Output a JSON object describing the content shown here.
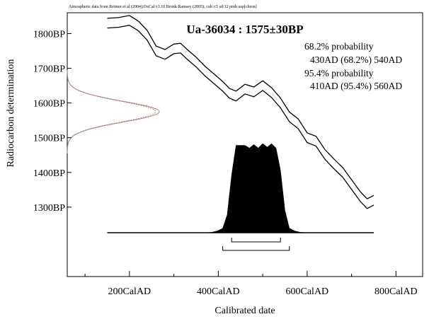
{
  "chart_data": {
    "type": "area",
    "header_note": "Atmospheric data from Reimer et al (2004);OxCal v3.10 Bronk Ramsey (2005); cub r:5 sd:12 prob usp[chron]",
    "title": "Ua-36034 : 1575±30BP",
    "xlabel": "Calibrated date",
    "ylabel": "Radiocarbon determination",
    "x_axis_unit": "CalAD",
    "y_axis_unit": "BP",
    "xlim": [
      60,
      860
    ],
    "ylim": [
      1100,
      1860
    ],
    "x_ticks": [
      {
        "value": 200,
        "label": "200CalAD"
      },
      {
        "value": 400,
        "label": "400CalAD"
      },
      {
        "value": 600,
        "label": "600CalAD"
      },
      {
        "value": 800,
        "label": "800CalAD"
      }
    ],
    "x_minor_ticks": [
      100,
      300,
      500,
      700
    ],
    "y_ticks": [
      {
        "value": 1800,
        "label": "1800BP"
      },
      {
        "value": 1700,
        "label": "1700BP"
      },
      {
        "value": 1600,
        "label": "1600BP"
      },
      {
        "value": 1500,
        "label": "1500BP"
      },
      {
        "value": 1400,
        "label": "1400BP"
      },
      {
        "value": 1300,
        "label": "1300BP"
      }
    ],
    "legend_lines": [
      "68.2% probability",
      "430AD (68.2%) 540AD",
      "95.4% probability",
      "410AD (95.4%) 560AD"
    ],
    "measurement": {
      "mean_bp": 1575,
      "sigma": 30
    },
    "calibration_curve": {
      "x": [
        150,
        175,
        200,
        220,
        240,
        260,
        280,
        300,
        315,
        330,
        350,
        370,
        390,
        410,
        425,
        440,
        460,
        480,
        500,
        520,
        540,
        560,
        580,
        600,
        620,
        640,
        660,
        680,
        700,
        720,
        735,
        750
      ],
      "y": [
        1830,
        1832,
        1838,
        1822,
        1795,
        1750,
        1740,
        1756,
        1758,
        1740,
        1718,
        1692,
        1670,
        1648,
        1628,
        1620,
        1640,
        1632,
        1650,
        1630,
        1600,
        1560,
        1540,
        1500,
        1490,
        1452,
        1425,
        1400,
        1365,
        1330,
        1310,
        1320
      ],
      "band_half_width_bp": 14
    },
    "posterior_distribution": {
      "x": [
        410,
        420,
        430,
        440,
        450,
        460,
        470,
        480,
        490,
        500,
        510,
        520,
        530,
        540,
        550,
        560
      ],
      "y": [
        0.05,
        0.2,
        0.65,
        0.98,
        0.98,
        0.98,
        0.95,
        0.99,
        0.95,
        1.0,
        0.96,
        1.0,
        0.95,
        0.7,
        0.25,
        0.05
      ]
    },
    "ranges": [
      {
        "probability": "68.2%",
        "from": 430,
        "to": 540
      },
      {
        "probability": "95.4%",
        "from": 410,
        "to": 560
      }
    ],
    "grid": false
  }
}
